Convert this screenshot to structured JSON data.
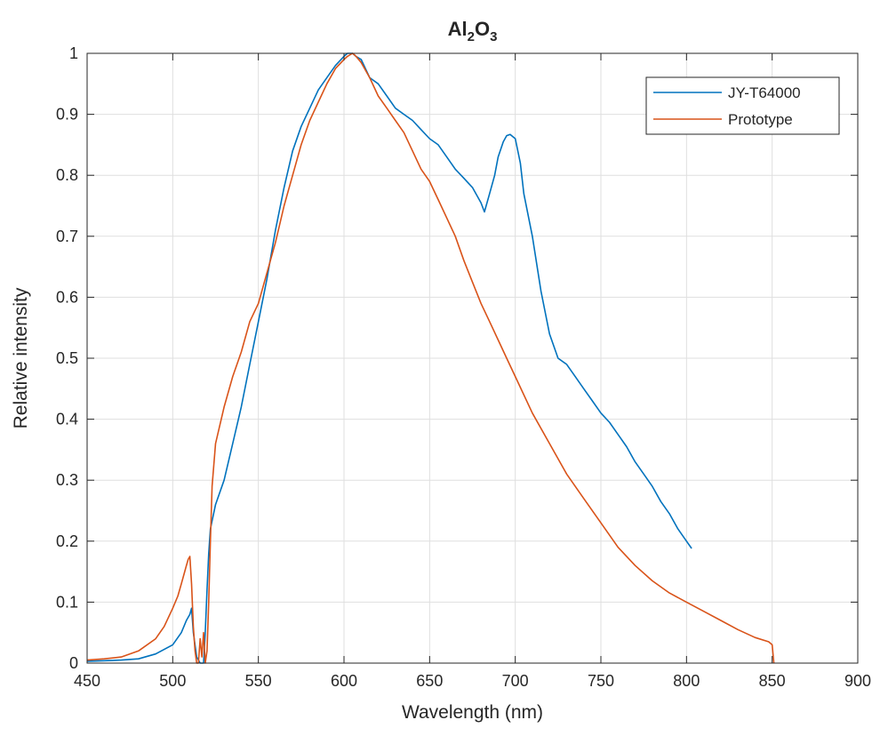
{
  "chart_data": {
    "type": "line",
    "title": "Al2O3",
    "title_parts": {
      "base": "Al",
      "sub1": "2",
      "mid": "O",
      "sub2": "3"
    },
    "xlabel": "Wavelength (nm)",
    "ylabel": "Relative intensity",
    "xlim": [
      450,
      900
    ],
    "ylim": [
      0,
      1
    ],
    "xticks": [
      450,
      500,
      550,
      600,
      650,
      700,
      750,
      800,
      850,
      900
    ],
    "xtick_labels": [
      "450",
      "500",
      "550",
      "600",
      "650",
      "700",
      "750",
      "800",
      "850",
      "900"
    ],
    "yticks": [
      0,
      0.1,
      0.2,
      0.3,
      0.4,
      0.5,
      0.6,
      0.7,
      0.8,
      0.9,
      1
    ],
    "ytick_labels": [
      "0",
      "0.1",
      "0.2",
      "0.3",
      "0.4",
      "0.5",
      "0.6",
      "0.7",
      "0.8",
      "0.9",
      "1"
    ],
    "grid": true,
    "legend_position": "top-right",
    "series": [
      {
        "name": "JY-T64000",
        "color": "#0072bd",
        "x": [
          450,
          460,
          470,
          480,
          490,
          500,
          505,
          508,
          510,
          511,
          512,
          514,
          516,
          518,
          519,
          520,
          521,
          522,
          525,
          530,
          535,
          540,
          545,
          550,
          555,
          560,
          565,
          570,
          575,
          580,
          585,
          590,
          595,
          600,
          602,
          605,
          607,
          610,
          615,
          620,
          625,
          630,
          635,
          640,
          645,
          650,
          655,
          660,
          665,
          670,
          675,
          680,
          682,
          685,
          688,
          690,
          693,
          695,
          697,
          700,
          703,
          705,
          710,
          715,
          720,
          725,
          730,
          735,
          740,
          745,
          750,
          755,
          760,
          765,
          770,
          775,
          780,
          785,
          790,
          795,
          800,
          803
        ],
        "y": [
          0.003,
          0.004,
          0.005,
          0.007,
          0.015,
          0.03,
          0.05,
          0.07,
          0.08,
          0.09,
          0.05,
          0.01,
          0.0,
          0.0,
          0.05,
          0.12,
          0.18,
          0.22,
          0.26,
          0.3,
          0.36,
          0.42,
          0.49,
          0.56,
          0.63,
          0.71,
          0.78,
          0.84,
          0.88,
          0.91,
          0.94,
          0.96,
          0.98,
          0.995,
          1.0,
          1.0,
          0.995,
          0.99,
          0.96,
          0.95,
          0.93,
          0.91,
          0.9,
          0.89,
          0.875,
          0.86,
          0.85,
          0.83,
          0.81,
          0.795,
          0.78,
          0.755,
          0.74,
          0.77,
          0.8,
          0.83,
          0.855,
          0.865,
          0.867,
          0.86,
          0.82,
          0.77,
          0.7,
          0.61,
          0.54,
          0.5,
          0.49,
          0.47,
          0.45,
          0.43,
          0.41,
          0.395,
          0.375,
          0.355,
          0.33,
          0.31,
          0.29,
          0.265,
          0.245,
          0.22,
          0.2,
          0.188
        ]
      },
      {
        "name": "Prototype",
        "color": "#d95319",
        "x": [
          450,
          460,
          470,
          480,
          490,
          495,
          500,
          503,
          505,
          507,
          508,
          509,
          510,
          511,
          512,
          513,
          514,
          515,
          516,
          517,
          518,
          519,
          520,
          521,
          522,
          523,
          525,
          530,
          535,
          540,
          545,
          550,
          555,
          560,
          565,
          570,
          575,
          580,
          585,
          590,
          595,
          600,
          602,
          605,
          607,
          610,
          615,
          620,
          625,
          630,
          635,
          640,
          645,
          650,
          655,
          660,
          665,
          670,
          675,
          680,
          685,
          690,
          695,
          700,
          710,
          720,
          730,
          740,
          750,
          760,
          770,
          780,
          790,
          800,
          810,
          820,
          830,
          840,
          848,
          850,
          851
        ],
        "y": [
          0.005,
          0.007,
          0.01,
          0.02,
          0.04,
          0.06,
          0.09,
          0.11,
          0.13,
          0.15,
          0.16,
          0.17,
          0.175,
          0.13,
          0.06,
          0.02,
          0.0,
          0.0,
          0.04,
          0.01,
          0.05,
          0.0,
          0.02,
          0.1,
          0.2,
          0.29,
          0.36,
          0.42,
          0.47,
          0.51,
          0.56,
          0.59,
          0.64,
          0.69,
          0.75,
          0.8,
          0.85,
          0.89,
          0.92,
          0.95,
          0.975,
          0.99,
          0.995,
          1.0,
          0.995,
          0.985,
          0.96,
          0.93,
          0.91,
          0.89,
          0.87,
          0.84,
          0.81,
          0.79,
          0.76,
          0.73,
          0.7,
          0.66,
          0.625,
          0.59,
          0.56,
          0.53,
          0.5,
          0.47,
          0.41,
          0.36,
          0.31,
          0.27,
          0.23,
          0.19,
          0.16,
          0.135,
          0.115,
          0.1,
          0.085,
          0.07,
          0.055,
          0.042,
          0.035,
          0.03,
          0.0
        ]
      }
    ]
  }
}
